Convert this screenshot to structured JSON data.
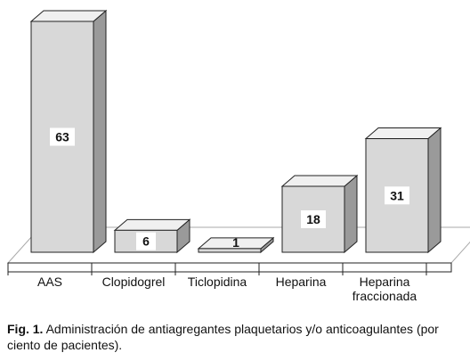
{
  "caption": {
    "figure_label": "Fig. 1.",
    "text": " Administración de antiagregantes plaquetarios y/o anticoagulantes (por ciento de pacientes)."
  },
  "chart_data": {
    "type": "bar",
    "categories": [
      "AAS",
      "Clopidogrel",
      "Ticlopidina",
      "Heparina",
      "Heparina fraccionada"
    ],
    "category_lines": [
      [
        "AAS"
      ],
      [
        "Clopidogrel"
      ],
      [
        "Ticlopidina"
      ],
      [
        "Heparina"
      ],
      [
        "Heparina",
        "fraccionada"
      ]
    ],
    "values": [
      63,
      6,
      1,
      18,
      31
    ],
    "data_labels": [
      "63",
      "6",
      "1",
      "18",
      "31"
    ],
    "ylim": [
      0,
      63
    ],
    "grid": false,
    "style": "3d-bar",
    "colors": {
      "front": "#d8d8d8",
      "top": "#f0f0f0",
      "side": "#9a9a9a",
      "floor": "#ffffff",
      "stroke": "#222222"
    }
  }
}
